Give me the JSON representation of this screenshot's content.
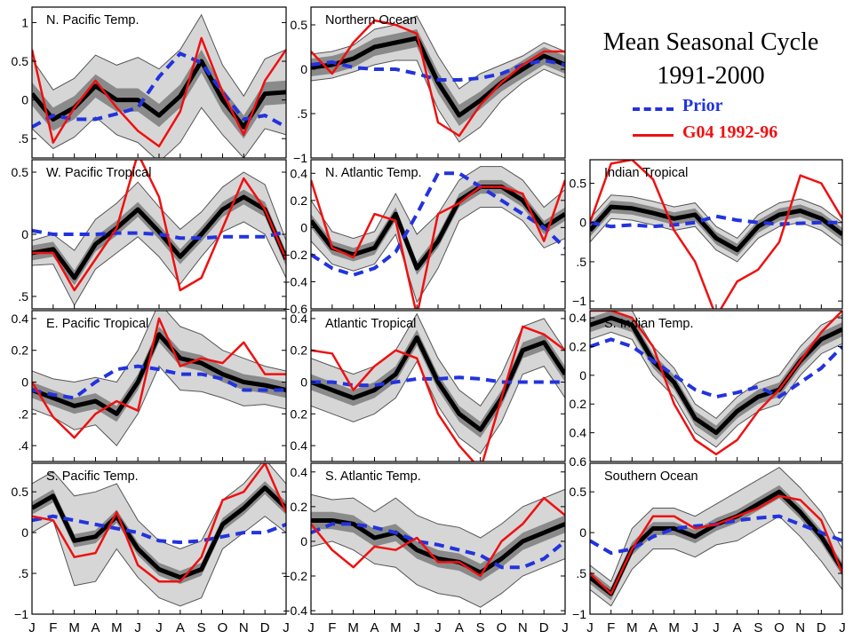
{
  "figure": {
    "title_line1": "Mean Seasonal Cycle",
    "title_line2": "1991-2000",
    "legend": [
      {
        "label": "Prior",
        "color": "#2233dd"
      },
      {
        "label": "G04 1992-96",
        "color": "#ee1111"
      }
    ],
    "month_labels": [
      "J",
      "F",
      "M",
      "A",
      "M",
      "J",
      "J",
      "A",
      "S",
      "O",
      "N",
      "D",
      "J"
    ]
  },
  "chart_data": [
    {
      "type": "line",
      "title": "N. Pacific Temp.",
      "ylim": [
        -0.75,
        1.2
      ],
      "ticks": [
        1,
        0.5,
        0,
        -0.5
      ],
      "tick_labels": [
        "1",
        "0.5",
        "0",
        ".5"
      ],
      "series": [
        {
          "name": "Prior",
          "values": [
            -0.35,
            -0.2,
            -0.25,
            -0.25,
            -0.18,
            -0.1,
            0.3,
            0.6,
            0.48,
            0.1,
            -0.25,
            -0.2,
            -0.35
          ]
        },
        {
          "name": "G04 1992-96",
          "values": [
            0.65,
            -0.55,
            -0.1,
            0.25,
            -0.1,
            -0.4,
            -0.6,
            -0.15,
            0.8,
            0.1,
            -0.45,
            0.25,
            0.65
          ]
        },
        {
          "values": [
            0.08,
            -0.25,
            -0.1,
            0.18,
            0.0,
            0.0,
            -0.2,
            0.05,
            0.5,
            0.0,
            -0.35,
            0.08,
            0.1
          ]
        }
      ],
      "band_inner": [
        0.15,
        0.15,
        0.15,
        0.15,
        0.15,
        0.15,
        0.15,
        0.15,
        0.15,
        0.15,
        0.15,
        0.15,
        0.15
      ],
      "band_outer": [
        0.45,
        0.38,
        0.38,
        0.4,
        0.45,
        0.55,
        0.6,
        0.6,
        0.6,
        0.45,
        0.4,
        0.45,
        0.55
      ]
    },
    {
      "type": "line",
      "title": "Northern Ocean",
      "ylim": [
        -1,
        0.7
      ],
      "ticks": [
        0.5,
        0,
        -0.5,
        -1
      ],
      "tick_labels": [
        "0.5",
        "0",
        ".5",
        "−1"
      ],
      "series": [
        {
          "name": "Prior",
          "values": [
            0.05,
            0.08,
            0.02,
            0.0,
            0.0,
            -0.05,
            -0.12,
            -0.12,
            -0.1,
            -0.05,
            0.05,
            0.1,
            0.05
          ]
        },
        {
          "name": "G04 1992-96",
          "values": [
            0.2,
            -0.05,
            0.3,
            0.55,
            0.5,
            0.4,
            -0.6,
            -0.75,
            -0.4,
            -0.15,
            0.05,
            0.2,
            0.2
          ]
        },
        {
          "values": [
            0.02,
            0.05,
            0.12,
            0.25,
            0.3,
            0.35,
            -0.15,
            -0.52,
            -0.35,
            -0.15,
            0.0,
            0.15,
            0.05
          ]
        }
      ],
      "band_inner": [
        0.1,
        0.1,
        0.1,
        0.1,
        0.1,
        0.1,
        0.12,
        0.12,
        0.1,
        0.1,
        0.1,
        0.1,
        0.1
      ],
      "band_outer": [
        0.15,
        0.15,
        0.15,
        0.2,
        0.2,
        0.25,
        0.3,
        0.3,
        0.3,
        0.2,
        0.15,
        0.15,
        0.15
      ]
    },
    {
      "type": "line",
      "title": "W. Pacific Tropical",
      "ylim": [
        -0.6,
        0.6
      ],
      "ticks": [
        0.5,
        0,
        -0.5
      ],
      "tick_labels": [
        "0.5",
        "0",
        ".5"
      ],
      "series": [
        {
          "name": "Prior",
          "values": [
            0.03,
            0.0,
            0.0,
            0.0,
            0.01,
            0.01,
            0.0,
            -0.03,
            -0.03,
            -0.02,
            -0.02,
            -0.02,
            0.02
          ]
        },
        {
          "name": "G04 1992-96",
          "values": [
            -0.15,
            -0.15,
            -0.45,
            -0.2,
            0.05,
            0.65,
            0.3,
            -0.45,
            -0.35,
            0.05,
            0.45,
            0.2,
            -0.2
          ]
        },
        {
          "values": [
            -0.15,
            -0.12,
            -0.35,
            -0.08,
            0.05,
            0.2,
            0.02,
            -0.18,
            0.0,
            0.2,
            0.3,
            0.2,
            -0.2
          ]
        }
      ],
      "band_inner": [
        0.06,
        0.06,
        0.06,
        0.06,
        0.06,
        0.06,
        0.06,
        0.06,
        0.06,
        0.06,
        0.06,
        0.06,
        0.06
      ],
      "band_outer": [
        0.1,
        0.12,
        0.22,
        0.2,
        0.2,
        0.22,
        0.2,
        0.22,
        0.18,
        0.18,
        0.2,
        0.2,
        0.15
      ]
    },
    {
      "type": "line",
      "title": "N. Atlantic Temp.",
      "ylim": [
        -0.6,
        0.5
      ],
      "ticks": [
        0.4,
        0.2,
        0,
        -0.2,
        -0.4,
        -0.6
      ],
      "tick_labels": [
        "0.4",
        "0.2",
        "0",
        "−0.2",
        "−0.4",
        "−0.6"
      ],
      "series": [
        {
          "name": "Prior",
          "values": [
            -0.2,
            -0.3,
            -0.35,
            -0.3,
            -0.18,
            0.1,
            0.4,
            0.4,
            0.3,
            0.2,
            0.1,
            0.0,
            -0.15
          ]
        },
        {
          "name": "G04 1992-96",
          "values": [
            0.35,
            -0.15,
            -0.22,
            0.1,
            0.05,
            -0.65,
            0.1,
            0.18,
            0.3,
            0.3,
            0.25,
            -0.1,
            0.35
          ]
        },
        {
          "values": [
            0.05,
            -0.15,
            -0.2,
            -0.15,
            0.1,
            -0.3,
            -0.1,
            0.2,
            0.3,
            0.3,
            0.2,
            0.0,
            0.1
          ]
        }
      ],
      "band_inner": [
        0.05,
        0.05,
        0.05,
        0.05,
        0.05,
        0.05,
        0.05,
        0.05,
        0.05,
        0.05,
        0.05,
        0.05,
        0.05
      ],
      "band_outer": [
        0.15,
        0.12,
        0.12,
        0.12,
        0.15,
        0.25,
        0.2,
        0.15,
        0.15,
        0.15,
        0.15,
        0.15,
        0.18
      ]
    },
    {
      "type": "line",
      "title": "Indian Tropical",
      "ylim": [
        -1.1,
        0.8
      ],
      "ticks": [
        0.5,
        0,
        -0.5,
        -1
      ],
      "tick_labels": [
        "0.5",
        "0",
        ".5",
        "−1"
      ],
      "series": [
        {
          "name": "Prior",
          "values": [
            0.0,
            -0.05,
            -0.03,
            -0.05,
            -0.03,
            0.0,
            0.08,
            0.03,
            0.0,
            -0.02,
            -0.01,
            0.0,
            0.0
          ]
        },
        {
          "name": "G04 1992-96",
          "values": [
            0.0,
            0.75,
            0.8,
            0.55,
            -0.1,
            -0.5,
            -1.2,
            -0.75,
            -0.6,
            -0.25,
            0.6,
            0.5,
            0.05
          ]
        },
        {
          "values": [
            -0.1,
            0.2,
            0.18,
            0.12,
            0.05,
            0.1,
            -0.2,
            -0.35,
            -0.05,
            0.1,
            0.15,
            0.05,
            -0.15
          ]
        }
      ],
      "band_inner": [
        0.08,
        0.08,
        0.08,
        0.08,
        0.08,
        0.08,
        0.08,
        0.08,
        0.08,
        0.08,
        0.08,
        0.08,
        0.08
      ],
      "band_outer": [
        0.15,
        0.15,
        0.15,
        0.15,
        0.15,
        0.15,
        0.15,
        0.15,
        0.15,
        0.15,
        0.15,
        0.15,
        0.15
      ]
    },
    {
      "type": "line",
      "title": "E. Pacific Tropical",
      "ylim": [
        -0.5,
        0.45
      ],
      "ticks": [
        0.4,
        0.2,
        0,
        -0.2,
        -0.4
      ],
      "tick_labels": [
        "0.4",
        "0.2",
        "0",
        ".2",
        ".4"
      ],
      "series": [
        {
          "name": "Prior",
          "values": [
            -0.05,
            -0.08,
            -0.1,
            0.0,
            0.08,
            0.1,
            0.08,
            0.05,
            0.05,
            0.02,
            -0.05,
            -0.05,
            -0.05
          ]
        },
        {
          "name": "G04 1992-96",
          "values": [
            0.0,
            -0.22,
            -0.35,
            -0.2,
            -0.12,
            -0.18,
            0.4,
            0.1,
            0.15,
            0.12,
            0.25,
            0.05,
            0.05
          ]
        },
        {
          "values": [
            -0.05,
            -0.1,
            -0.15,
            -0.12,
            -0.2,
            0.0,
            0.3,
            0.15,
            0.12,
            0.05,
            0.0,
            -0.02,
            -0.05
          ]
        }
      ],
      "band_inner": [
        0.05,
        0.05,
        0.05,
        0.05,
        0.05,
        0.05,
        0.05,
        0.05,
        0.05,
        0.05,
        0.05,
        0.05,
        0.05
      ],
      "band_outer": [
        0.12,
        0.12,
        0.15,
        0.15,
        0.2,
        0.2,
        0.2,
        0.2,
        0.18,
        0.15,
        0.15,
        0.12,
        0.12
      ]
    },
    {
      "type": "line",
      "title": "Atlantic Tropical",
      "ylim": [
        -0.5,
        0.45
      ],
      "ticks": [
        0.4,
        0.2,
        0,
        -0.2,
        -0.4
      ],
      "tick_labels": [
        "0.4",
        "0.2",
        "0",
        "0.2",
        "0.4"
      ],
      "series": [
        {
          "name": "Prior",
          "values": [
            0.0,
            0.0,
            -0.02,
            -0.02,
            0.0,
            0.02,
            0.02,
            0.03,
            0.02,
            0.0,
            0.0,
            0.0,
            0.0
          ]
        },
        {
          "name": "G04 1992-96",
          "values": [
            0.2,
            0.18,
            -0.05,
            0.1,
            0.2,
            0.15,
            -0.2,
            -0.4,
            -0.55,
            -0.1,
            0.35,
            0.3,
            0.2
          ]
        },
        {
          "values": [
            0.0,
            -0.05,
            -0.1,
            -0.05,
            0.05,
            0.28,
            0.0,
            -0.2,
            -0.3,
            -0.1,
            0.2,
            0.25,
            0.05
          ]
        }
      ],
      "band_inner": [
        0.05,
        0.05,
        0.05,
        0.05,
        0.05,
        0.05,
        0.05,
        0.05,
        0.05,
        0.05,
        0.05,
        0.05,
        0.05
      ],
      "band_outer": [
        0.15,
        0.15,
        0.15,
        0.15,
        0.15,
        0.15,
        0.15,
        0.15,
        0.15,
        0.15,
        0.15,
        0.15,
        0.15
      ]
    },
    {
      "type": "line",
      "title": "S. Indian Temp.",
      "ylim": [
        -0.6,
        0.45
      ],
      "ticks": [
        0.4,
        0.2,
        0,
        -0.2,
        -0.4,
        -0.6
      ],
      "tick_labels": [
        "0.4",
        "0.2",
        "0",
        "0.2",
        "0.4",
        "0.6"
      ],
      "series": [
        {
          "name": "Prior",
          "values": [
            0.2,
            0.25,
            0.2,
            0.1,
            0.0,
            -0.1,
            -0.15,
            -0.12,
            -0.08,
            -0.15,
            -0.05,
            0.05,
            0.2
          ]
        },
        {
          "name": "G04 1992-96",
          "values": [
            0.45,
            0.45,
            0.4,
            0.2,
            -0.2,
            -0.45,
            -0.55,
            -0.45,
            -0.25,
            -0.1,
            0.1,
            0.3,
            0.45
          ]
        },
        {
          "values": [
            0.35,
            0.4,
            0.35,
            0.1,
            -0.05,
            -0.3,
            -0.4,
            -0.25,
            -0.15,
            -0.1,
            0.1,
            0.25,
            0.32
          ]
        }
      ],
      "band_inner": [
        0.05,
        0.05,
        0.05,
        0.05,
        0.05,
        0.05,
        0.05,
        0.05,
        0.05,
        0.05,
        0.05,
        0.05,
        0.05
      ],
      "band_outer": [
        0.1,
        0.1,
        0.1,
        0.1,
        0.1,
        0.1,
        0.1,
        0.1,
        0.1,
        0.1,
        0.1,
        0.1,
        0.1
      ]
    },
    {
      "type": "line",
      "title": "S. Pacific Temp.",
      "ylim": [
        -1,
        0.85
      ],
      "ticks": [
        0.5,
        0,
        -0.5,
        -1
      ],
      "tick_labels": [
        "0.5",
        "0",
        ".5",
        "−1"
      ],
      "series": [
        {
          "name": "Prior",
          "values": [
            0.15,
            0.2,
            0.15,
            0.1,
            0.05,
            0.0,
            -0.1,
            -0.12,
            -0.1,
            -0.05,
            0.0,
            0.0,
            0.1
          ]
        },
        {
          "name": "G04 1992-96",
          "values": [
            0.2,
            0.15,
            -0.3,
            -0.25,
            0.25,
            -0.4,
            -0.6,
            -0.6,
            -0.3,
            0.4,
            0.5,
            0.85,
            0.25
          ]
        },
        {
          "values": [
            0.3,
            0.45,
            -0.1,
            -0.05,
            0.2,
            -0.2,
            -0.45,
            -0.55,
            -0.45,
            0.1,
            0.3,
            0.55,
            0.3
          ]
        }
      ],
      "band_inner": [
        0.08,
        0.08,
        0.08,
        0.08,
        0.08,
        0.08,
        0.08,
        0.08,
        0.08,
        0.08,
        0.08,
        0.08,
        0.08
      ],
      "band_outer": [
        0.3,
        0.3,
        0.55,
        0.55,
        0.4,
        0.35,
        0.35,
        0.35,
        0.35,
        0.3,
        0.3,
        0.35,
        0.3
      ]
    },
    {
      "type": "line",
      "title": "S. Atlantic Temp.",
      "ylim": [
        -0.42,
        0.45
      ],
      "ticks": [
        0.4,
        0.2,
        0,
        -0.2,
        -0.4
      ],
      "tick_labels": [
        "0.4",
        "0.2",
        "0",
        "−0.2",
        "−0.4"
      ],
      "series": [
        {
          "name": "Prior",
          "values": [
            0.05,
            0.1,
            0.1,
            0.08,
            0.05,
            0.0,
            -0.02,
            -0.05,
            -0.08,
            -0.15,
            -0.15,
            -0.1,
            0.0
          ]
        },
        {
          "name": "G04 1992-96",
          "values": [
            0.1,
            -0.05,
            -0.15,
            -0.03,
            -0.05,
            0.02,
            -0.12,
            -0.12,
            -0.2,
            0.0,
            0.1,
            0.25,
            0.15
          ]
        },
        {
          "values": [
            0.12,
            0.12,
            0.1,
            0.02,
            0.05,
            -0.05,
            -0.1,
            -0.12,
            -0.18,
            -0.1,
            0.0,
            0.05,
            0.1
          ]
        }
      ],
      "band_inner": [
        0.05,
        0.05,
        0.05,
        0.05,
        0.05,
        0.05,
        0.05,
        0.05,
        0.05,
        0.05,
        0.05,
        0.05,
        0.05
      ],
      "band_outer": [
        0.15,
        0.12,
        0.15,
        0.15,
        0.2,
        0.2,
        0.2,
        0.2,
        0.2,
        0.2,
        0.2,
        0.2,
        0.2
      ]
    },
    {
      "type": "line",
      "title": "Southern Ocean",
      "ylim": [
        -1,
        0.85
      ],
      "ticks": [
        0.5,
        0,
        -0.5,
        -1
      ],
      "tick_labels": [
        "0.5",
        "0",
        ".5",
        "−1"
      ],
      "series": [
        {
          "name": "Prior",
          "values": [
            -0.1,
            -0.25,
            -0.2,
            -0.05,
            0.05,
            0.08,
            0.1,
            0.15,
            0.18,
            0.2,
            0.1,
            0.0,
            -0.1
          ]
        },
        {
          "name": "G04 1992-96",
          "values": [
            -0.5,
            -0.75,
            -0.2,
            0.2,
            0.2,
            0.05,
            0.1,
            0.2,
            0.3,
            0.45,
            0.4,
            0.15,
            -0.5
          ]
        },
        {
          "values": [
            -0.55,
            -0.75,
            -0.2,
            0.05,
            0.05,
            -0.05,
            0.1,
            0.2,
            0.35,
            0.5,
            0.25,
            -0.05,
            -0.45
          ]
        }
      ],
      "band_inner": [
        0.08,
        0.08,
        0.08,
        0.08,
        0.08,
        0.08,
        0.08,
        0.08,
        0.08,
        0.08,
        0.08,
        0.08,
        0.08
      ],
      "band_outer": [
        0.15,
        0.15,
        0.25,
        0.25,
        0.25,
        0.25,
        0.25,
        0.3,
        0.3,
        0.3,
        0.3,
        0.3,
        0.25
      ]
    }
  ]
}
